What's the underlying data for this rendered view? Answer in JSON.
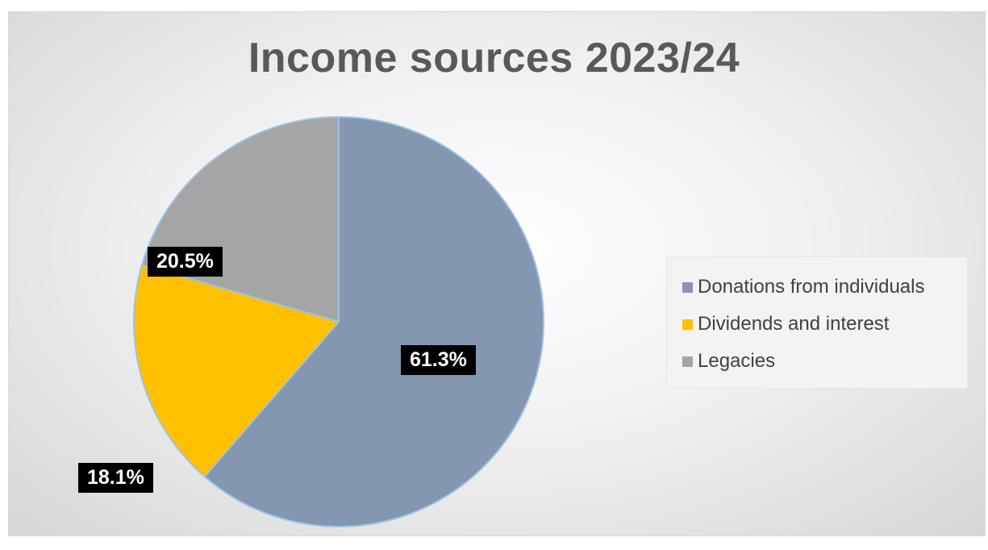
{
  "chart_data": {
    "type": "pie",
    "title": "Income sources 2023/24",
    "categories": [
      "Donations from individuals",
      "Dividends and interest",
      "Legacies"
    ],
    "values": [
      61.3,
      18.1,
      20.5
    ],
    "labels": [
      "61.3%",
      "18.1%",
      "20.5%"
    ],
    "colors": [
      "#8497b0",
      "#ffc000",
      "#a5a5a5"
    ],
    "legend_position": "right",
    "start_angle": "12 o'clock, clockwise"
  }
}
